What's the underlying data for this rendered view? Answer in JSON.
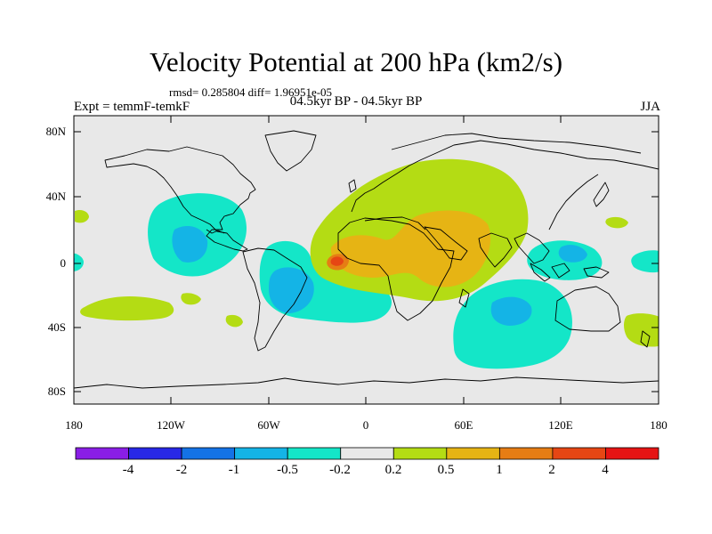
{
  "title": "Velocity Potential at 200 hPa (km2/s)",
  "stats": "rmsd= 0.285804 diff= 1.96951e-05",
  "experiment": "Expt = temmF-temkF",
  "period": "04.5kyr BP - 04.5kyr BP",
  "season": "JJA",
  "lat_ticks": [
    "80N",
    "40N",
    "0",
    "40S",
    "80S"
  ],
  "lon_ticks": [
    "180",
    "120W",
    "60W",
    "0",
    "60E",
    "120E",
    "180"
  ],
  "colorbar": {
    "colors": [
      "#8a1ee6",
      "#2828e6",
      "#1473e6",
      "#14b4e6",
      "#14e6c8",
      "#e8e8e8",
      "#b4dc14",
      "#e6b414",
      "#e67d14",
      "#e64614",
      "#e61414"
    ],
    "labels": [
      "-4",
      "-2",
      "-1",
      "-0.5",
      "-0.2",
      "0.2",
      "0.5",
      "1",
      "2",
      "4"
    ]
  },
  "colors": {
    "background": "#e8e8e8",
    "negative_weak": "#14e6c8",
    "negative_mid": "#14b4e6",
    "positive_weak": "#b4dc14",
    "positive_mid": "#e6b414",
    "positive_strong": "#e67d14",
    "positive_max": "#e64614"
  }
}
